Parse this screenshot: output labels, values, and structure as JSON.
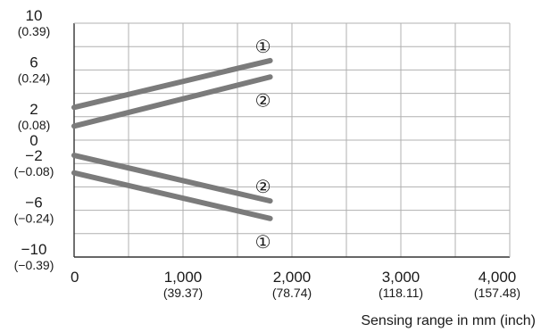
{
  "chart_data": {
    "type": "line",
    "xlabel": "Sensing range in mm (inch)",
    "ylabel": "",
    "xlim": [
      0,
      4000
    ],
    "ylim": [
      -10,
      10
    ],
    "grid": true,
    "x_ticks": [
      {
        "value": 0,
        "label": "0",
        "sub": ""
      },
      {
        "value": 1000,
        "label": "1,000",
        "sub": "(39.37)"
      },
      {
        "value": 2000,
        "label": "2,000",
        "sub": "(78.74)"
      },
      {
        "value": 3000,
        "label": "3,000",
        "sub": "(118.11)"
      },
      {
        "value": 4000,
        "label": "4,000",
        "sub": "(157.48)"
      }
    ],
    "y_ticks": [
      {
        "value": 10,
        "label": "10",
        "sub": "(0.39)"
      },
      {
        "value": 6,
        "label": "6",
        "sub": "(0.24)"
      },
      {
        "value": 2,
        "label": "2",
        "sub": "(0.08)"
      },
      {
        "value": 0,
        "label": "0",
        "sub": ""
      },
      {
        "value": -2,
        "label": "−2",
        "sub": "(−0.08)"
      },
      {
        "value": -6,
        "label": "−6",
        "sub": "(−0.24)"
      },
      {
        "value": -10,
        "label": "−10",
        "sub": "(−0.39)"
      }
    ],
    "series": [
      {
        "marker": "①",
        "x": [
          0,
          1800
        ],
        "y": [
          2.8,
          6.8
        ]
      },
      {
        "marker": "②",
        "x": [
          0,
          1800
        ],
        "y": [
          1.2,
          5.4
        ]
      },
      {
        "marker": "②",
        "x": [
          0,
          1800
        ],
        "y": [
          -1.3,
          -5.2
        ]
      },
      {
        "marker": "①",
        "x": [
          0,
          1800
        ],
        "y": [
          -2.8,
          -6.7
        ]
      }
    ],
    "colors": {
      "line": "#7b7b7b",
      "grid": "#b0b0b0",
      "axis": "#333333"
    }
  }
}
